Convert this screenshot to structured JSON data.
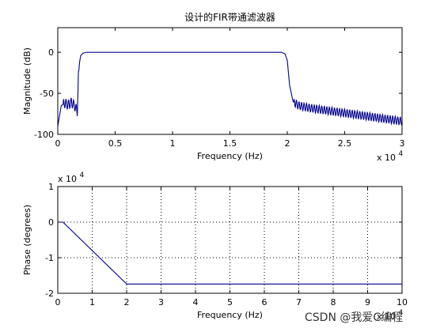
{
  "chart_data": [
    {
      "type": "line",
      "title": "设计的FIR带通滤波器",
      "xlabel": "Frequency (Hz)",
      "ylabel": "Magnitude (dB)",
      "xlim": [
        0,
        30000
      ],
      "ylim": [
        -100,
        30
      ],
      "xticks": [
        0,
        5000,
        10000,
        15000,
        20000,
        25000,
        30000
      ],
      "xtick_labels": [
        "0",
        "0.5",
        "1",
        "1.5",
        "2",
        "2.5",
        "3"
      ],
      "yticks": [
        -100,
        -50,
        0
      ],
      "ytick_labels": [
        "-100",
        "-50",
        "0"
      ],
      "x_exponent": {
        "base": "x 10",
        "power": "4"
      },
      "grid": false,
      "series": [
        {
          "color": "#00008b",
          "x": [
            0,
            300,
            600,
            900,
            1200,
            1500,
            1700,
            1800,
            1900,
            2000,
            2200,
            2500,
            3000,
            5000,
            10000,
            15000,
            19500,
            19800,
            20000,
            20200,
            20500,
            21000,
            22000,
            24000,
            26000,
            28000,
            30000
          ],
          "y": [
            -90,
            -65,
            -62,
            -64,
            -61,
            -66,
            -72,
            -28,
            -12,
            -4,
            -1,
            0,
            0,
            0,
            0,
            0,
            0,
            -2,
            -10,
            -40,
            -60,
            -65,
            -68,
            -72,
            -76,
            -80,
            -84
          ],
          "ripple": [
            {
              "x_from": 500,
              "x_to": 1800,
              "amplitude": 6
            },
            {
              "x_from": 20600,
              "x_to": 30000,
              "amplitude": 5
            }
          ]
        }
      ]
    },
    {
      "type": "line",
      "title": "",
      "xlabel": "Frequency (Hz)",
      "ylabel": "Phase (degrees)",
      "xlim": [
        0,
        100000
      ],
      "ylim": [
        -20000,
        10000
      ],
      "xticks": [
        0,
        10000,
        20000,
        30000,
        40000,
        50000,
        60000,
        70000,
        80000,
        90000,
        100000
      ],
      "xtick_labels": [
        "0",
        "1",
        "2",
        "3",
        "4",
        "5",
        "6",
        "7",
        "8",
        "9",
        "10"
      ],
      "yticks": [
        -20000,
        -10000,
        0,
        10000
      ],
      "ytick_labels": [
        "-2",
        "-1",
        "0",
        "1"
      ],
      "y_exponent": {
        "base": "x 10",
        "power": "4"
      },
      "x_exponent": {
        "base": "x 10",
        "power": "4"
      },
      "grid": true,
      "series": [
        {
          "color": "#00008b",
          "x": [
            0,
            1500,
            20000,
            100000
          ],
          "y": [
            0,
            0,
            -17400,
            -17400
          ]
        }
      ]
    }
  ],
  "watermark": "CSDN @我爱C编程"
}
